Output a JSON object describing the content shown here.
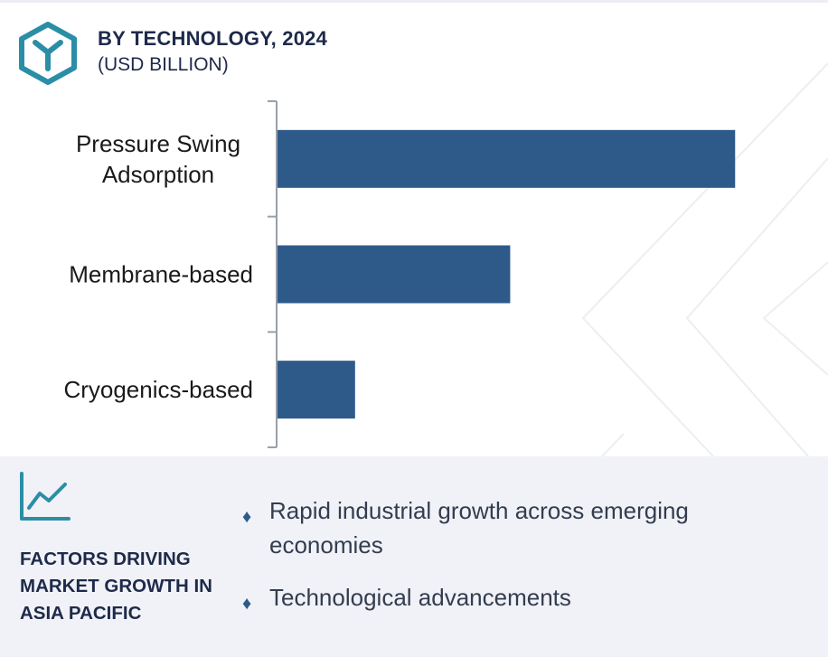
{
  "header": {
    "title": "BY TECHNOLOGY, 2024",
    "subtitle": "(USD BILLION)"
  },
  "colors": {
    "bar": "#2e5a8a",
    "accent": "#2a8ea6",
    "heading": "#1e2a4a",
    "panel": "#f1f2f7"
  },
  "chart_data": {
    "type": "bar",
    "orientation": "horizontal",
    "categories": [
      "Pressure Swing Adsorption",
      "Membrane-based",
      "Cryogenics-based"
    ],
    "values": [
      5.9,
      3.0,
      1.0
    ],
    "xlim": [
      0,
      6.2
    ],
    "grid": false,
    "legend": "none"
  },
  "factors": {
    "heading": "FACTORS DRIVING MARKET GROWTH IN ASIA PACIFIC",
    "items": [
      "Rapid industrial growth across emerging economies",
      "Technological advancements"
    ]
  }
}
